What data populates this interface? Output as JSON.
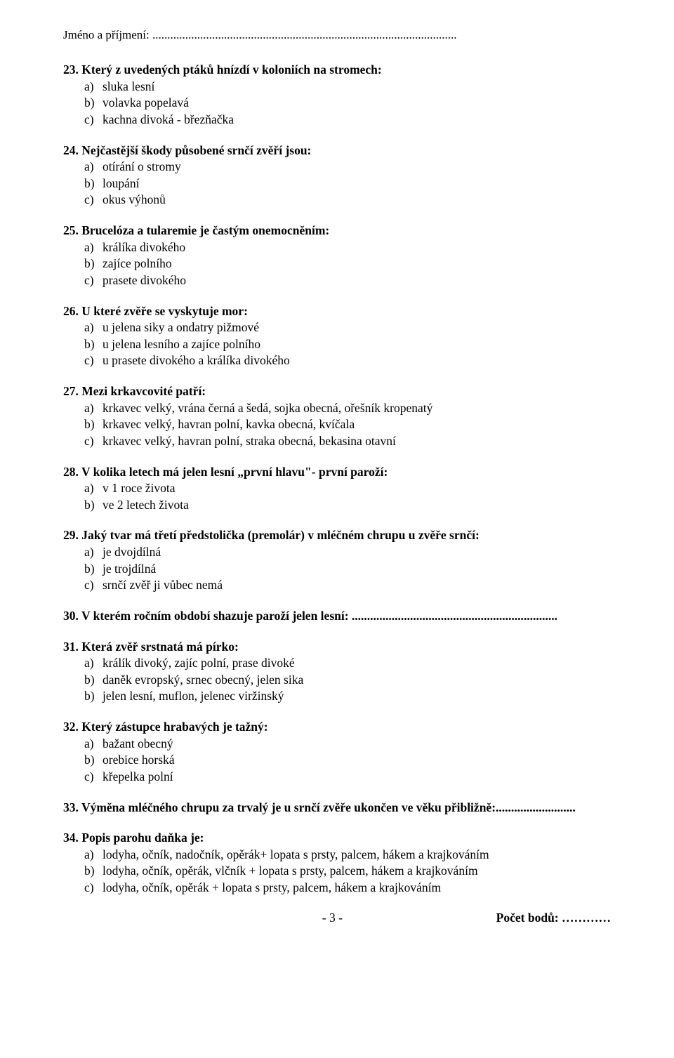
{
  "header": {
    "label": "Jméno a příjmení: ",
    "dots": "......................................................................................................"
  },
  "questions": [
    {
      "num": "23.",
      "text": "Který z uvedených ptáků hnízdí v koloniích na stromech:",
      "opts": [
        {
          "l": "a)",
          "t": "sluka lesní"
        },
        {
          "l": "b)",
          "t": "volavka popelavá"
        },
        {
          "l": "c)",
          "t": "kachna divoká - březňačka"
        }
      ]
    },
    {
      "num": "24.",
      "text": "Nejčastější škody působené srnčí zvěří jsou:",
      "opts": [
        {
          "l": "a)",
          "t": "otírání o stromy"
        },
        {
          "l": "b)",
          "t": "loupání"
        },
        {
          "l": "c)",
          "t": "okus výhonů"
        }
      ]
    },
    {
      "num": "25.",
      "text": "Brucelóza a tularemie je častým onemocněním:",
      "opts": [
        {
          "l": "a)",
          "t": "králíka divokého"
        },
        {
          "l": "b)",
          "t": "zajíce polního"
        },
        {
          "l": "c)",
          "t": "prasete divokého"
        }
      ]
    },
    {
      "num": "26.",
      "text": "U které zvěře se vyskytuje mor:",
      "opts": [
        {
          "l": "a)",
          "t": "u jelena siky a ondatry pižmové"
        },
        {
          "l": "b)",
          "t": "u jelena lesního a zajíce polního"
        },
        {
          "l": "c)",
          "t": "u prasete divokého a králíka divokého"
        }
      ]
    },
    {
      "num": "27.",
      "text": "Mezi krkavcovité patří:",
      "opts": [
        {
          "l": "a)",
          "t": "krkavec velký, vrána černá a šedá, sojka obecná, ořešník kropenatý"
        },
        {
          "l": "b)",
          "t": "krkavec velký, havran polní, kavka obecná, kvíčala"
        },
        {
          "l": "c)",
          "t": "krkavec velký, havran polní, straka obecná, bekasina otavní"
        }
      ]
    },
    {
      "num": "28.",
      "text": "V kolika letech má jelen lesní „první hlavu\"- první paroží:",
      "opts": [
        {
          "l": "a)",
          "t": "v 1 roce života"
        },
        {
          "l": "b)",
          "t": "ve 2 letech života"
        }
      ]
    },
    {
      "num": "29.",
      "text": "Jaký tvar má třetí předstolička (premolár) v mléčném chrupu u zvěře srnčí:",
      "opts": [
        {
          "l": "a)",
          "t": "je dvojdílná"
        },
        {
          "l": "b)",
          "t": "je trojdílná"
        },
        {
          "l": "c)",
          "t": "srnčí zvěř ji vůbec nemá"
        }
      ]
    },
    {
      "num": "30.",
      "text": "V kterém ročním období shazuje paroží jelen lesní: ",
      "fill": "...................................................................",
      "opts": []
    },
    {
      "num": "31.",
      "text": "Která zvěř srstnatá má pírko:",
      "opts": [
        {
          "l": "a)",
          "t": "králík divoký, zajíc polní, prase divoké"
        },
        {
          "l": "b)",
          "t": "daněk evropský, srnec obecný, jelen sika"
        },
        {
          "l": "b)",
          "t": "jelen lesní, muflon, jelenec viržinský"
        }
      ]
    },
    {
      "num": "32.",
      "text": "Který zástupce hrabavých je tažný:",
      "opts": [
        {
          "l": "a)",
          "t": "bažant obecný"
        },
        {
          "l": "b)",
          "t": "orebice horská"
        },
        {
          "l": "c)",
          "t": "křepelka polní"
        }
      ]
    },
    {
      "num": "33.",
      "text": "Výměna mléčného chrupu za trvalý je u srnčí zvěře ukončen ve věku přibližně:",
      "fill": "..........................",
      "opts": []
    },
    {
      "num": "34.",
      "text": "Popis parohu daňka  je:",
      "opts": [
        {
          "l": "a)",
          "t": "lodyha, očník, nadočník, opěrák+ lopata s prsty, palcem, hákem a krajkováním"
        },
        {
          "l": "b)",
          "t": "lodyha, očník, opěrák, vlčník + lopata s prsty, palcem, hákem a krajkováním"
        },
        {
          "l": "c)",
          "t": "lodyha, očník, opěrák + lopata s prsty, palcem, hákem a krajkováním"
        }
      ]
    }
  ],
  "footer": {
    "page_num": "- 3 -",
    "points_label": "Počet bodů: ",
    "points_dots": "…………"
  }
}
